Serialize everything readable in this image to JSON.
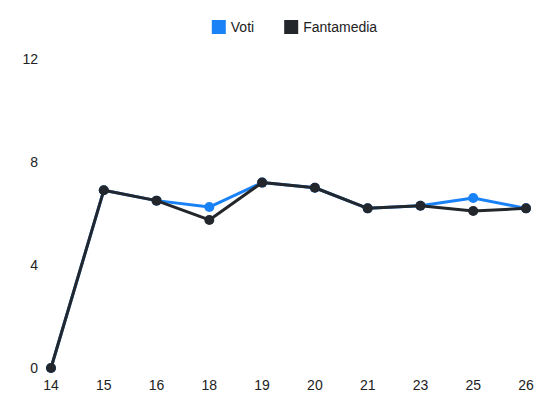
{
  "chart_data": {
    "type": "line",
    "categories": [
      "14",
      "15",
      "16",
      "18",
      "19",
      "20",
      "21",
      "23",
      "25",
      "26"
    ],
    "series": [
      {
        "name": "Voti",
        "color": "#1a82f7",
        "values": [
          0,
          6.9,
          6.5,
          6.25,
          7.2,
          7,
          6.2,
          6.3,
          6.6,
          6.2
        ]
      },
      {
        "name": "Fantamedia",
        "color": "#23272b",
        "values": [
          0,
          6.9,
          6.5,
          5.75,
          7.2,
          7,
          6.2,
          6.3,
          6.1,
          6.2
        ]
      }
    ],
    "ylim": [
      0,
      12
    ],
    "yticks": [
      0,
      4,
      8,
      12
    ],
    "grid": false,
    "legend": "top",
    "marker": "circle"
  }
}
